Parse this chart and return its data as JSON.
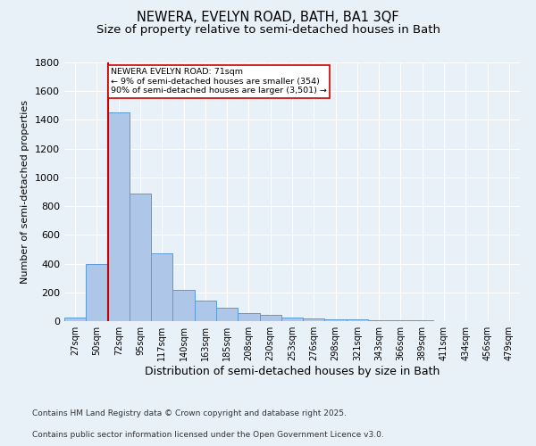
{
  "title_line1": "NEWERA, EVELYN ROAD, BATH, BA1 3QF",
  "title_line2": "Size of property relative to semi-detached houses in Bath",
  "xlabel": "Distribution of semi-detached houses by size in Bath",
  "ylabel": "Number of semi-detached properties",
  "categories": [
    "27sqm",
    "50sqm",
    "72sqm",
    "95sqm",
    "117sqm",
    "140sqm",
    "163sqm",
    "185sqm",
    "208sqm",
    "230sqm",
    "253sqm",
    "276sqm",
    "298sqm",
    "321sqm",
    "343sqm",
    "366sqm",
    "389sqm",
    "411sqm",
    "434sqm",
    "456sqm",
    "479sqm"
  ],
  "values": [
    25,
    400,
    1450,
    890,
    470,
    220,
    145,
    95,
    55,
    45,
    25,
    20,
    15,
    10,
    8,
    7,
    5,
    3,
    2,
    2,
    1
  ],
  "bar_color": "#aec6e8",
  "bar_edge_color": "#5b9bd5",
  "vline_x_index": 2,
  "vline_color": "#cc0000",
  "annotation_text": "NEWERA EVELYN ROAD: 71sqm\n← 9% of semi-detached houses are smaller (354)\n90% of semi-detached houses are larger (3,501) →",
  "annotation_box_color": "#ffffff",
  "annotation_box_edge": "#cc0000",
  "ylim": [
    0,
    1800
  ],
  "yticks": [
    0,
    200,
    400,
    600,
    800,
    1000,
    1200,
    1400,
    1600,
    1800
  ],
  "background_color": "#e8f0f8",
  "grid_color": "#ffffff",
  "footer_line1": "Contains HM Land Registry data © Crown copyright and database right 2025.",
  "footer_line2": "Contains public sector information licensed under the Open Government Licence v3.0.",
  "title_fontsize": 10.5,
  "subtitle_fontsize": 9.5,
  "tick_fontsize": 7,
  "xlabel_fontsize": 9,
  "ylabel_fontsize": 8,
  "annotation_fontsize": 6.8,
  "footer_fontsize": 6.5
}
